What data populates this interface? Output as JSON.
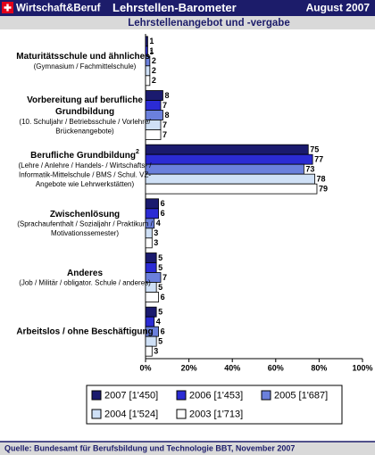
{
  "header": {
    "brand": "Wirtschaft&Beruf",
    "title": "Lehrstellen-Barometer",
    "date": "August 2007"
  },
  "chart_data": {
    "type": "hbar",
    "title": "Lehrstellenangebot  und -vergabe",
    "categories": [
      {
        "title": "Maturitätsschule und ähnliches",
        "sup": "1",
        "note": [
          "(Gymnasium / Fachmittelschule)"
        ]
      },
      {
        "title": "Vorbereitung auf berufliche",
        "title2": "Grundbildung",
        "note": [
          "(10. Schuljahr / Betriebsschule / Vorlehre/",
          "Brückenangebote)"
        ]
      },
      {
        "title": "Berufliche Grundbildung",
        "sup": "2",
        "note": [
          "(Lehre / Anlehre / Handels- / Wirtschafts- /",
          "Informatik-Mittelschule / BMS / Schul. VZ-",
          "Angebote wie Lehrwerkstätten)"
        ]
      },
      {
        "title": "Zwischenlösung",
        "note": [
          "(Sprachaufenthalt / Sozialjahr / Praktikum /",
          "Motivationssemester)"
        ]
      },
      {
        "title": "Anderes",
        "note": [
          "(Job / Militär / obligator. Schule / anderes)"
        ]
      },
      {
        "title": "Arbeitslos / ohne Beschäftigung"
      }
    ],
    "series": [
      {
        "name": "2007 [1'450]",
        "color": "#1a1a6e",
        "values": [
          1,
          8,
          75,
          6,
          5,
          5
        ]
      },
      {
        "name": "2006 [1'453]",
        "color": "#2b2bd4",
        "values": [
          1,
          7,
          77,
          6,
          5,
          4
        ]
      },
      {
        "name": "2005 [1'687]",
        "color": "#6b80dc",
        "values": [
          2,
          8,
          73,
          4,
          7,
          6
        ]
      },
      {
        "name": "2004 [1'524]",
        "color": "#cfe0f6",
        "values": [
          2,
          7,
          78,
          3,
          5,
          5
        ]
      },
      {
        "name": "2003 [1'713]",
        "color": "#ffffff",
        "values": [
          2,
          7,
          79,
          3,
          6,
          3
        ]
      }
    ],
    "xlim": [
      0,
      100
    ],
    "xticks": [
      {
        "value": 0,
        "label": "0%"
      },
      {
        "value": 20,
        "label": "20%"
      },
      {
        "value": 40,
        "label": "40%"
      },
      {
        "value": 60,
        "label": "60%"
      },
      {
        "value": 80,
        "label": "80%"
      },
      {
        "value": 100,
        "label": "100%"
      }
    ],
    "legend": "bottom",
    "source": "Quelle: Bundesamt für Berufsbildung und Technologie BBT, November 2007"
  }
}
